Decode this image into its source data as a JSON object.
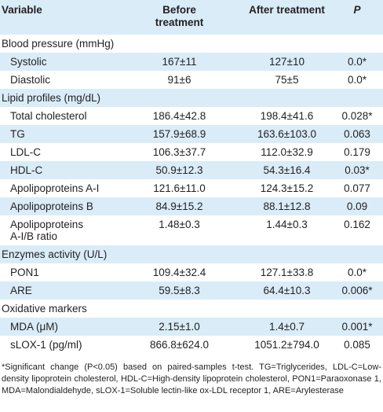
{
  "header": {
    "variable": "Variable",
    "before": "Before treatment",
    "after": "After treatment",
    "p": "P"
  },
  "rows": [
    {
      "type": "section",
      "label": "Blood pressure (mmHg)",
      "shade": false
    },
    {
      "type": "data",
      "label": "Systolic",
      "before": "167±11",
      "after": "127±10",
      "p": "0.0*",
      "shade": true
    },
    {
      "type": "data",
      "label": "Diastolic",
      "before": "91±6",
      "after": "75±5",
      "p": "0.0*",
      "shade": false
    },
    {
      "type": "section",
      "label": "Lipid profiles (mg/dL)",
      "shade": true
    },
    {
      "type": "data",
      "label": "Total cholesterol",
      "before": "186.4±42.8",
      "after": "198.4±41.6",
      "p": "0.028*",
      "shade": false
    },
    {
      "type": "data",
      "label": "TG",
      "before": "157.9±68.9",
      "after": "163.6±103.0",
      "p": "0.063",
      "shade": true
    },
    {
      "type": "data",
      "label": "LDL-C",
      "before": "106.3±37.7",
      "after": "112.0±32.9",
      "p": "0.179",
      "shade": false
    },
    {
      "type": "data",
      "label": "HDL-C",
      "before": "50.9±12.3",
      "after": "54.3±16.4",
      "p": "0.03*",
      "shade": true
    },
    {
      "type": "data",
      "label": "Apolipoproteins A-I",
      "before": "121.6±11.0",
      "after": "124.3±15.2",
      "p": "0.077",
      "shade": false
    },
    {
      "type": "data",
      "label": "Apolipoproteins B",
      "before": "84.9±15.2",
      "after": "88.1±12.8",
      "p": "0.09",
      "shade": true
    },
    {
      "type": "data",
      "label": "Apolipoproteins",
      "label2": "A-I/B ratio",
      "before": "1.48±0.3",
      "after": "1.44±0.3",
      "p": "0.162",
      "shade": false
    },
    {
      "type": "section",
      "label": "Enzymes activity (U/L)",
      "shade": true
    },
    {
      "type": "data",
      "label": "PON1",
      "before": "109.4±32.4",
      "after": "127.1±33.8",
      "p": "0.0*",
      "shade": false
    },
    {
      "type": "data",
      "label": "ARE",
      "before": "59.5±8.3",
      "after": "64.4±10.3",
      "p": "0.006*",
      "shade": true
    },
    {
      "type": "section",
      "label": "Oxidative markers",
      "shade": false
    },
    {
      "type": "data",
      "label": "MDA (μM)",
      "before": "2.15±1.0",
      "after": "1.4±0.7",
      "p": "0.001*",
      "shade": true
    },
    {
      "type": "data",
      "label": "sLOX-1 (pg/ml)",
      "before": "866.8±624.0",
      "after": "1051.2±794.0",
      "p": "0.085",
      "shade": false
    }
  ],
  "footnote": "*Significant change (P<0.05) based on paired-samples t-test. TG=Triglycerides, LDL-C=Low-density lipoprotein cholesterol, HDL-C=High-density lipoprotein cholesterol, PON1=Paraoxonase 1, MDA=Malondialdehyde, sLOX-1=Soluble lectin-like ox-LDL receptor 1, ARE=Arylesterase"
}
